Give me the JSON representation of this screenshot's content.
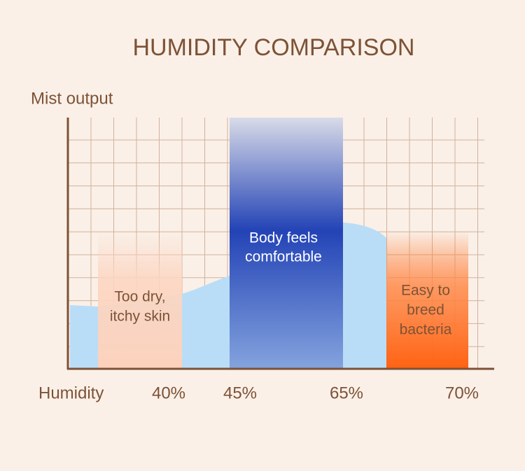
{
  "title": "HUMIDITY COMPARISON",
  "y_axis_label": "Mist output",
  "x_axis_label": "Humidity",
  "x_labels": [
    "40%",
    "45%",
    "65%",
    "70%"
  ],
  "zones": [
    {
      "lines": [
        "Too dry,",
        "itchy skin"
      ]
    },
    {
      "lines": [
        "Body feels",
        "comfortable"
      ]
    },
    {
      "lines": [
        "Easy to",
        "breed",
        "bacteria"
      ]
    }
  ]
}
